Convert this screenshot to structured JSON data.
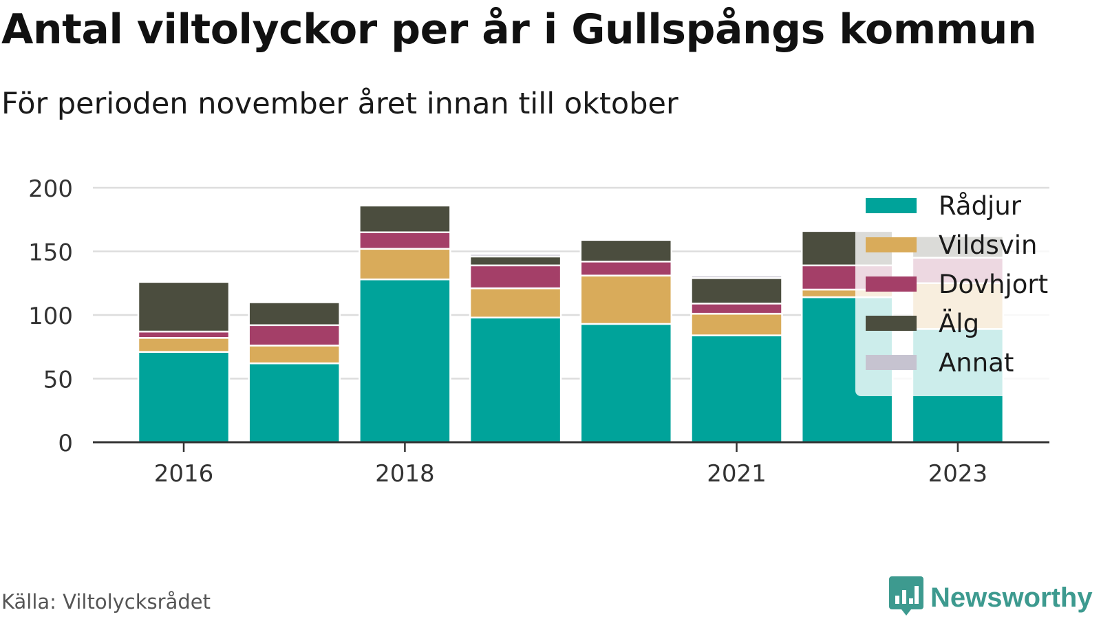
{
  "title": "Antal viltolyckor per år i Gullspångs kommun",
  "subtitle": "För perioden november året innan till oktober",
  "source": "Källa: Viltolycksrådet",
  "brand": {
    "name": "Newsworthy",
    "logo_icon": "bar-chart-speech-bubble-icon",
    "color": "#3d9a8f"
  },
  "chart_data": {
    "type": "bar",
    "stacked": true,
    "categories": [
      "2016",
      "2017",
      "2018",
      "2019",
      "2020",
      "2021",
      "2022",
      "2023"
    ],
    "x_tick_labels": [
      "2016",
      "2018",
      "2021",
      "2023"
    ],
    "ylim": [
      0,
      200
    ],
    "y_ticks": [
      "0",
      "50",
      "100",
      "150",
      "200"
    ],
    "grid": true,
    "legend_position": "top-right",
    "series": [
      {
        "name": "Rådjur",
        "color": "#00a39a",
        "values": [
          71,
          62,
          128,
          98,
          93,
          84,
          114,
          89
        ]
      },
      {
        "name": "Vildsvin",
        "color": "#d9ab5a",
        "values": [
          11,
          14,
          24,
          23,
          38,
          17,
          6,
          36
        ]
      },
      {
        "name": "Dovhjort",
        "color": "#a43f68",
        "values": [
          5,
          16,
          13,
          18,
          11,
          8,
          19,
          20
        ]
      },
      {
        "name": "Älg",
        "color": "#4b4d3e",
        "values": [
          39,
          18,
          21,
          7,
          17,
          20,
          27,
          17
        ]
      },
      {
        "name": "Annat",
        "color": "#c6c3d0",
        "values": [
          0,
          0,
          0,
          2,
          0,
          2,
          0,
          1
        ]
      }
    ]
  }
}
